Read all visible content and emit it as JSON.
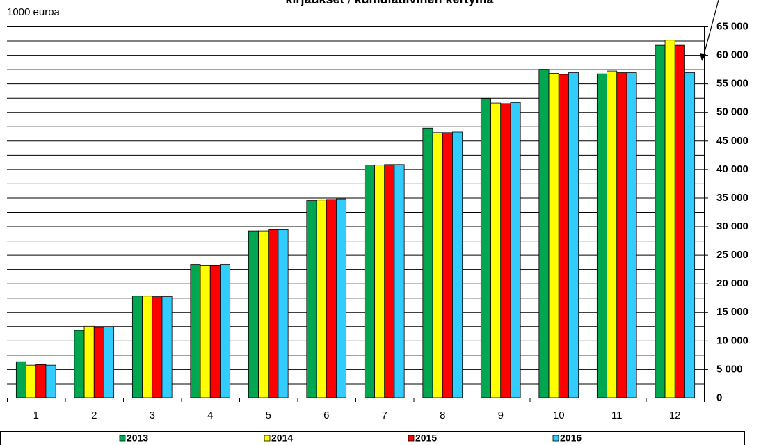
{
  "chart_data": {
    "type": "bar",
    "title": "kirjaukset / kumulatiivinen kertymä",
    "y_label": "1000 euroa",
    "categories": [
      "1",
      "2",
      "3",
      "4",
      "5",
      "6",
      "7",
      "8",
      "9",
      "10",
      "11",
      "12"
    ],
    "series": [
      {
        "name": "2013",
        "color": "#00a650",
        "values": [
          6300,
          11800,
          17800,
          23300,
          29200,
          34500,
          40700,
          47200,
          52400,
          57500,
          56700,
          61700
        ]
      },
      {
        "name": "2014",
        "color": "#ffff00",
        "values": [
          5700,
          12500,
          17800,
          23200,
          29200,
          34600,
          40700,
          46400,
          51600,
          56800,
          57200,
          62600
        ]
      },
      {
        "name": "2015",
        "color": "#ff0000",
        "values": [
          5800,
          12300,
          17700,
          23200,
          29400,
          34700,
          40800,
          46400,
          51500,
          56600,
          56900,
          61700
        ]
      },
      {
        "name": "2016",
        "color": "#33ccff",
        "values": [
          5700,
          12400,
          17700,
          23300,
          29400,
          34800,
          40800,
          46500,
          51700,
          56900,
          56900,
          56900
        ]
      }
    ],
    "ylim": [
      0,
      65000
    ],
    "yticks": [
      0,
      {
        "value": 5000,
        "label": "5 000"
      },
      {
        "value": 10000,
        "label": "10 000"
      },
      {
        "value": 15000,
        "label": "15 000"
      },
      {
        "value": 20000,
        "label": "20 000"
      },
      {
        "value": 25000,
        "label": "25 000"
      },
      {
        "value": 30000,
        "label": "30 000"
      },
      {
        "value": 35000,
        "label": "35 000"
      },
      {
        "value": 40000,
        "label": "40 000"
      },
      {
        "value": 45000,
        "label": "45 000"
      },
      {
        "value": 50000,
        "label": "50 000"
      },
      {
        "value": 55000,
        "label": "55 000"
      },
      {
        "value": 60000,
        "label": "60 000"
      },
      {
        "value": 65000,
        "label": "65 000"
      }
    ],
    "minor_yticks": [
      2500,
      7500,
      12500,
      17500,
      22500,
      27500,
      32500,
      37500,
      42500,
      47500,
      52500,
      57500,
      62500
    ],
    "grid": true,
    "legend": "bottom"
  }
}
